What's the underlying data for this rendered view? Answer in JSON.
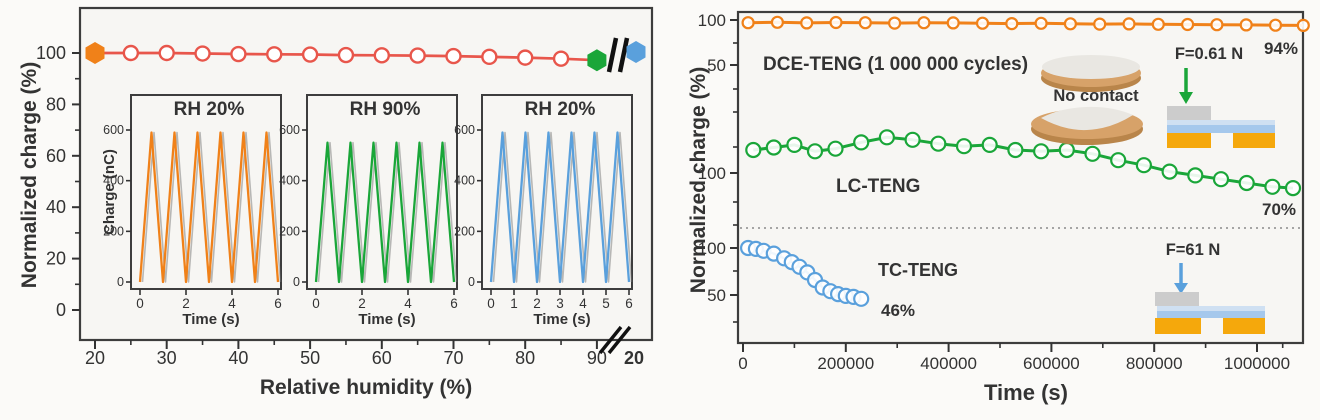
{
  "colors": {
    "red": "#e8564b",
    "orange": "#f08119",
    "green": "#1aa639",
    "blue": "#5aa0dc",
    "axis": "#333333",
    "frame": "#3d3d3d",
    "panel_bg": "#f7f6f3",
    "tan": "#d7a269",
    "tan_dark": "#b9854a",
    "light_face": "#e9e7e2",
    "gray_layer": "#cccccc",
    "blue_layer": "#a5c8ec",
    "blue_layer_light": "#cfe0f2",
    "gold_layer": "#f5a80c",
    "dotted": "#8a8a8a",
    "break_mark": "#111111"
  },
  "chart_data": [
    {
      "id": "humidity-stability",
      "type": "line",
      "xlabel": "Relative humidity (%)",
      "ylabel": "Normalized charge (%)",
      "x_ticks": [
        20,
        30,
        40,
        50,
        60,
        70,
        80,
        90
      ],
      "x_break_label": "20",
      "y_ticks": [
        100,
        80,
        60,
        40,
        20,
        0
      ],
      "ylim": [
        0,
        112
      ],
      "series": [
        {
          "name": "normalized-charge-vs-RH",
          "color": "red",
          "x": [
            20,
            25,
            30,
            35,
            40,
            45,
            50,
            55,
            60,
            65,
            70,
            75,
            80,
            85,
            90
          ],
          "y": [
            100,
            100,
            100,
            99.8,
            99.6,
            99.5,
            99.4,
            99.2,
            99.1,
            99,
            98.8,
            98.5,
            98.2,
            97.8,
            97.2
          ]
        }
      ],
      "special_markers": {
        "start": {
          "x": 20,
          "y": 100,
          "shape": "hexagon",
          "color": "orange"
        },
        "end": {
          "x": 90,
          "y": 97.2,
          "shape": "hexagon",
          "color": "green"
        },
        "after_break": {
          "x_label": "20",
          "y": 100,
          "shape": "hexagon",
          "color": "blue"
        }
      }
    },
    {
      "id": "inset-rh20-first",
      "type": "line",
      "title": "RH 20%",
      "color": "orange",
      "xlabel": "Time (s)",
      "ylabel": "Charge (nC)",
      "x_ticks": [
        0,
        2,
        4,
        6
      ],
      "y_ticks": [
        600,
        400,
        200,
        0
      ],
      "waveform": {
        "cycles": 6,
        "peak_nC": 590,
        "t_start": 0,
        "t_end": 6
      }
    },
    {
      "id": "inset-rh90",
      "type": "line",
      "title": "RH 90%",
      "color": "green",
      "xlabel": "Time (s)",
      "ylabel": "",
      "x_ticks": [
        0,
        2,
        4,
        6
      ],
      "y_ticks": [
        600,
        400,
        200,
        0
      ],
      "waveform": {
        "cycles": 6,
        "peak_nC": 550,
        "t_start": 0,
        "t_end": 6
      }
    },
    {
      "id": "inset-rh20-second",
      "type": "line",
      "title": "RH 20%",
      "color": "blue",
      "xlabel": "Time (s)",
      "ylabel": "",
      "x_ticks": [
        0,
        1,
        2,
        3,
        4,
        5,
        6
      ],
      "y_ticks": [
        600,
        400,
        200,
        0
      ],
      "waveform": {
        "cycles": 6,
        "peak_nC": 590,
        "t_start": 0,
        "t_end": 6
      }
    },
    {
      "id": "durability",
      "type": "line",
      "xlabel": "Time (s)",
      "ylabel": "Normalized charge  (%)",
      "x_ticks": [
        0,
        200000,
        400000,
        600000,
        800000,
        1000000
      ],
      "y_segments": [
        {
          "ticks": [
            100,
            50
          ]
        },
        {
          "ticks": [
            100
          ]
        },
        {
          "ticks": [
            100,
            50
          ]
        }
      ],
      "series": [
        {
          "name": "DCE-TENG (1 000 000 cycles)",
          "color": "orange",
          "final_label": "94%",
          "x": [
            10000,
            67000,
            124000,
            181000,
            238000,
            295000,
            352000,
            409000,
            466000,
            523000,
            580000,
            637000,
            694000,
            751000,
            808000,
            865000,
            922000,
            979000,
            1036000,
            1090000
          ],
          "y": [
            97,
            97.4,
            96.8,
            97.2,
            97,
            96.6,
            97,
            96.8,
            96.4,
            96,
            96.3,
            95.8,
            95.5,
            95.7,
            95.2,
            95,
            94.8,
            94.5,
            94.2,
            94
          ]
        },
        {
          "name": "LC-TENG",
          "color": "green",
          "final_label": "70%",
          "x": [
            20000,
            60000,
            100000,
            140000,
            180000,
            230000,
            280000,
            330000,
            380000,
            430000,
            480000,
            530000,
            580000,
            630000,
            680000,
            730000,
            780000,
            830000,
            880000,
            930000,
            980000,
            1030000,
            1070000
          ],
          "y": [
            100,
            102,
            104,
            99,
            101,
            106,
            110,
            108,
            105,
            103,
            104,
            100,
            99,
            100,
            97,
            92,
            88,
            83,
            80,
            77,
            74,
            71,
            70
          ]
        },
        {
          "name": "TC-TENG",
          "color": "blue",
          "final_label": "46%",
          "x": [
            10000,
            25000,
            40000,
            60000,
            80000,
            95000,
            110000,
            125000,
            140000,
            155000,
            170000,
            185000,
            200000,
            215000,
            230000
          ],
          "y": [
            100,
            99,
            97,
            94,
            89,
            85,
            80,
            74,
            66,
            58,
            54,
            51,
            49,
            48,
            46
          ]
        }
      ],
      "annotations": {
        "no_contact": "No contact",
        "force_top": "F=0.61 N",
        "force_bottom": "F=61 N"
      }
    }
  ]
}
